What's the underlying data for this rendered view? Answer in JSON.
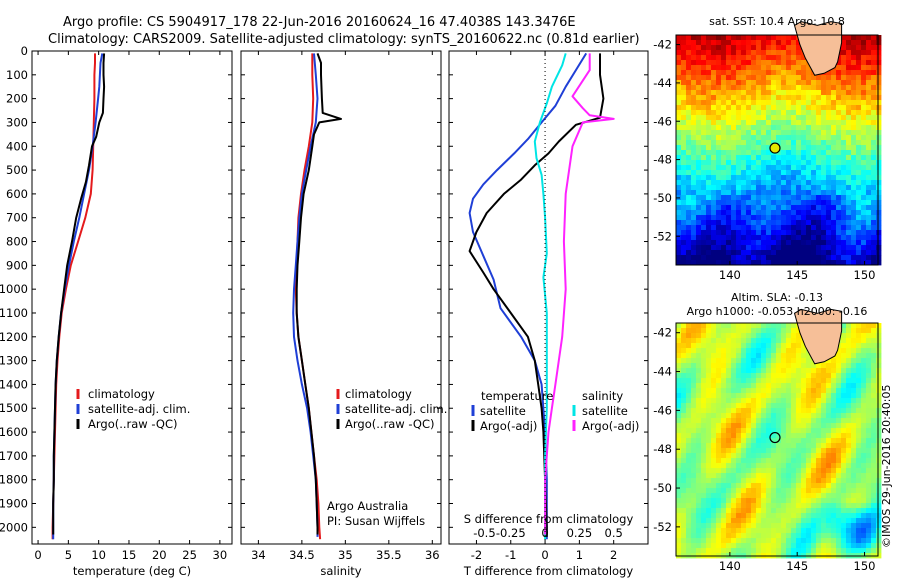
{
  "header": {
    "line1": "Argo profile: CS 5904917_178 22-Jun-2016 20160624_16 47.4038S 143.3476E",
    "line2": "Climatology: CARS2009. Satellite-adjusted climatology: synTS_20160622.nc (0.81d earlier)"
  },
  "depth_ticks": [
    0,
    100,
    200,
    300,
    400,
    500,
    600,
    700,
    800,
    900,
    1000,
    1100,
    1200,
    1300,
    1400,
    1500,
    1600,
    1700,
    1800,
    1900,
    2000
  ],
  "chart_data": [
    {
      "type": "line",
      "id": "temperature",
      "xlabel": "temperature (deg C)",
      "ylim": [
        0,
        2070
      ],
      "xlim": [
        -1,
        32
      ],
      "xticks": [
        0,
        5,
        10,
        15,
        20,
        25,
        30
      ],
      "legend": [
        "climatology",
        "satellite-adj. clim.",
        "Argo(..raw -QC)"
      ],
      "series": [
        {
          "name": "climatology",
          "color": "#e41a1c",
          "points": [
            [
              9.4,
              10
            ],
            [
              9.4,
              50
            ],
            [
              9.3,
              100
            ],
            [
              9.3,
              150
            ],
            [
              9.3,
              200
            ],
            [
              9.2,
              300
            ],
            [
              9.1,
              400
            ],
            [
              9.0,
              500
            ],
            [
              8.7,
              600
            ],
            [
              7.8,
              700
            ],
            [
              6.6,
              800
            ],
            [
              5.4,
              900
            ],
            [
              4.6,
              1000
            ],
            [
              3.9,
              1100
            ],
            [
              3.5,
              1200
            ],
            [
              3.2,
              1300
            ],
            [
              3.0,
              1400
            ],
            [
              2.9,
              1500
            ],
            [
              2.8,
              1600
            ],
            [
              2.7,
              1700
            ],
            [
              2.6,
              1800
            ],
            [
              2.5,
              1900
            ],
            [
              2.4,
              2000
            ],
            [
              2.4,
              2050
            ]
          ]
        },
        {
          "name": "satellite-adj. clim.",
          "color": "#1f3fd6",
          "points": [
            [
              10.6,
              10
            ],
            [
              10.3,
              50
            ],
            [
              10.2,
              100
            ],
            [
              10.1,
              150
            ],
            [
              9.9,
              200
            ],
            [
              9.5,
              300
            ],
            [
              9.0,
              400
            ],
            [
              8.4,
              500
            ],
            [
              7.6,
              600
            ],
            [
              6.8,
              700
            ],
            [
              5.9,
              800
            ],
            [
              5.1,
              900
            ],
            [
              4.4,
              1000
            ],
            [
              3.8,
              1100
            ],
            [
              3.4,
              1200
            ],
            [
              3.1,
              1300
            ],
            [
              2.9,
              1400
            ],
            [
              2.8,
              1500
            ],
            [
              2.7,
              1600
            ],
            [
              2.6,
              1700
            ],
            [
              2.6,
              1800
            ],
            [
              2.5,
              1900
            ],
            [
              2.5,
              2000
            ],
            [
              2.5,
              2050
            ]
          ]
        },
        {
          "name": "Argo(..raw -QC)",
          "color": "#000000",
          "points": [
            [
              10.9,
              10
            ],
            [
              10.8,
              50
            ],
            [
              10.8,
              100
            ],
            [
              10.9,
              150
            ],
            [
              10.8,
              200
            ],
            [
              10.7,
              260
            ],
            [
              10.1,
              300
            ],
            [
              9.6,
              360
            ],
            [
              8.9,
              400
            ],
            [
              8.4,
              480
            ],
            [
              7.9,
              550
            ],
            [
              7.1,
              620
            ],
            [
              6.3,
              700
            ],
            [
              5.6,
              800
            ],
            [
              4.8,
              900
            ],
            [
              4.3,
              1000
            ],
            [
              3.8,
              1100
            ],
            [
              3.4,
              1200
            ],
            [
              3.1,
              1300
            ],
            [
              2.9,
              1400
            ],
            [
              2.8,
              1500
            ],
            [
              2.7,
              1600
            ],
            [
              2.6,
              1700
            ],
            [
              2.6,
              1800
            ],
            [
              2.5,
              1900
            ],
            [
              2.5,
              2000
            ],
            [
              2.5,
              2030
            ]
          ]
        }
      ]
    },
    {
      "type": "line",
      "id": "salinity",
      "xlabel": "salinity",
      "ylim": [
        0,
        2070
      ],
      "xlim": [
        33.8,
        36.1
      ],
      "xticks": [
        34,
        34.5,
        35,
        35.5,
        36
      ],
      "legend": [
        "climatology",
        "satellite-adj. clim.",
        "Argo(..raw -QC)"
      ],
      "annotation": [
        "Argo Australia",
        "PI: Susan Wijffels"
      ],
      "series": [
        {
          "name": "climatology",
          "color": "#e41a1c",
          "points": [
            [
              34.62,
              10
            ],
            [
              34.62,
              100
            ],
            [
              34.63,
              200
            ],
            [
              34.62,
              300
            ],
            [
              34.58,
              400
            ],
            [
              34.53,
              500
            ],
            [
              34.49,
              600
            ],
            [
              34.46,
              700
            ],
            [
              34.45,
              800
            ],
            [
              34.44,
              900
            ],
            [
              34.43,
              1000
            ],
            [
              34.44,
              1100
            ],
            [
              34.46,
              1200
            ],
            [
              34.5,
              1300
            ],
            [
              34.54,
              1400
            ],
            [
              34.58,
              1500
            ],
            [
              34.61,
              1600
            ],
            [
              34.64,
              1700
            ],
            [
              34.67,
              1800
            ],
            [
              34.69,
              1900
            ],
            [
              34.7,
              2000
            ],
            [
              34.71,
              2050
            ]
          ]
        },
        {
          "name": "satellite-adj. clim.",
          "color": "#1f3fd6",
          "points": [
            [
              34.64,
              10
            ],
            [
              34.66,
              100
            ],
            [
              34.68,
              200
            ],
            [
              34.66,
              300
            ],
            [
              34.6,
              400
            ],
            [
              34.55,
              500
            ],
            [
              34.5,
              600
            ],
            [
              34.47,
              700
            ],
            [
              34.45,
              800
            ],
            [
              34.43,
              900
            ],
            [
              34.41,
              1000
            ],
            [
              34.4,
              1100
            ],
            [
              34.41,
              1200
            ],
            [
              34.45,
              1300
            ],
            [
              34.5,
              1400
            ],
            [
              34.56,
              1500
            ],
            [
              34.6,
              1600
            ],
            [
              34.63,
              1700
            ],
            [
              34.66,
              1800
            ],
            [
              34.67,
              1900
            ],
            [
              34.68,
              2000
            ],
            [
              34.68,
              2040
            ]
          ]
        },
        {
          "name": "Argo(..raw -QC)",
          "color": "#000000",
          "points": [
            [
              34.68,
              10
            ],
            [
              34.72,
              50
            ],
            [
              34.72,
              100
            ],
            [
              34.73,
              200
            ],
            [
              34.74,
              260
            ],
            [
              34.95,
              285
            ],
            [
              34.7,
              300
            ],
            [
              34.64,
              350
            ],
            [
              34.62,
              400
            ],
            [
              34.58,
              500
            ],
            [
              34.52,
              600
            ],
            [
              34.49,
              700
            ],
            [
              34.47,
              800
            ],
            [
              34.45,
              900
            ],
            [
              34.44,
              1000
            ],
            [
              34.44,
              1100
            ],
            [
              34.46,
              1200
            ],
            [
              34.5,
              1300
            ],
            [
              34.54,
              1400
            ],
            [
              34.58,
              1500
            ],
            [
              34.61,
              1600
            ],
            [
              34.64,
              1700
            ],
            [
              34.66,
              1800
            ],
            [
              34.67,
              1900
            ],
            [
              34.68,
              2000
            ],
            [
              34.68,
              2030
            ]
          ]
        }
      ]
    },
    {
      "type": "line",
      "id": "difference",
      "xlabel": "T difference from climatology",
      "top_label": "S difference from climatology",
      "ylim": [
        0,
        2070
      ],
      "xlim": [
        -2.8,
        3.0
      ],
      "xticks": [
        -2,
        -1,
        0,
        1,
        2
      ],
      "top_ticks": [
        "-0.5",
        "-0.25",
        "0",
        "0.25",
        "0.5"
      ],
      "top_tick_x": [
        -2,
        -1,
        0,
        1,
        2
      ],
      "legend_temperature": [
        "temperature",
        "satellite",
        "Argo(-adj)"
      ],
      "legend_salinity": [
        "salinity",
        "satellite",
        "Argo(-adj)"
      ],
      "series": [
        {
          "name": "temperature satellite",
          "color": "#1f3fd6",
          "points": [
            [
              1.2,
              10
            ],
            [
              0.9,
              80
            ],
            [
              0.6,
              150
            ],
            [
              0.3,
              230
            ],
            [
              -0.1,
              300
            ],
            [
              -0.5,
              370
            ],
            [
              -0.9,
              430
            ],
            [
              -1.4,
              500
            ],
            [
              -1.8,
              560
            ],
            [
              -2.1,
              620
            ],
            [
              -2.2,
              680
            ],
            [
              -2.1,
              760
            ],
            [
              -1.8,
              860
            ],
            [
              -1.5,
              960
            ],
            [
              -1.3,
              1080
            ],
            [
              -0.7,
              1200
            ],
            [
              -0.3,
              1300
            ],
            [
              -0.1,
              1400
            ],
            [
              0,
              1600
            ],
            [
              0.05,
              1800
            ],
            [
              0.05,
              2000
            ],
            [
              0.05,
              2050
            ]
          ]
        },
        {
          "name": "temperature Argo(-adj)",
          "color": "#000000",
          "points": [
            [
              1.6,
              10
            ],
            [
              1.6,
              50
            ],
            [
              1.6,
              100
            ],
            [
              1.7,
              200
            ],
            [
              1.6,
              280
            ],
            [
              0.9,
              310
            ],
            [
              0.4,
              380
            ],
            [
              0.1,
              430
            ],
            [
              -0.3,
              480
            ],
            [
              -0.7,
              540
            ],
            [
              -1.2,
              600
            ],
            [
              -1.7,
              680
            ],
            [
              -2.0,
              760
            ],
            [
              -2.2,
              840
            ],
            [
              -1.8,
              930
            ],
            [
              -1.5,
              1000
            ],
            [
              -1.0,
              1100
            ],
            [
              -0.5,
              1200
            ],
            [
              -0.3,
              1300
            ],
            [
              -0.2,
              1400
            ],
            [
              -0.1,
              1500
            ],
            [
              -0.05,
              1600
            ],
            [
              0,
              1800
            ],
            [
              0.05,
              2000
            ],
            [
              0.05,
              2040
            ]
          ]
        },
        {
          "name": "salinity satellite",
          "color": "#00e5e5",
          "points": [
            [
              0.6,
              10
            ],
            [
              0.5,
              60
            ],
            [
              0.2,
              150
            ],
            [
              0.05,
              220
            ],
            [
              -0.15,
              300
            ],
            [
              -0.3,
              380
            ],
            [
              -0.25,
              450
            ],
            [
              -0.1,
              520
            ],
            [
              -0.05,
              600
            ],
            [
              0,
              700
            ],
            [
              0.05,
              850
            ],
            [
              -0.05,
              950
            ],
            [
              0.05,
              1100
            ],
            [
              0.05,
              1300
            ],
            [
              0.05,
              1500
            ],
            [
              0,
              1700
            ],
            [
              0,
              1900
            ],
            [
              0,
              2050
            ]
          ]
        },
        {
          "name": "salinity Argo(-adj)",
          "color": "#ff22ff",
          "points": [
            [
              1.3,
              10
            ],
            [
              1.3,
              80
            ],
            [
              0.8,
              190
            ],
            [
              1.1,
              240
            ],
            [
              1.3,
              270
            ],
            [
              2.0,
              285
            ],
            [
              1.1,
              300
            ],
            [
              0.8,
              400
            ],
            [
              0.7,
              500
            ],
            [
              0.6,
              600
            ],
            [
              0.55,
              800
            ],
            [
              0.6,
              1000
            ],
            [
              0.5,
              1200
            ],
            [
              0.4,
              1300
            ],
            [
              0.3,
              1400
            ],
            [
              0.2,
              1500
            ],
            [
              0.1,
              1600
            ],
            [
              0,
              1800
            ],
            [
              0,
              2000
            ],
            [
              0,
              2030
            ]
          ]
        }
      ]
    },
    {
      "type": "heatmap",
      "id": "sst_map",
      "title": "sat. SST: 10.4 Argo: 10.8",
      "xticks": [
        140,
        145,
        150
      ],
      "yticks": [
        -42,
        -44,
        -46,
        -48,
        -50,
        -52
      ],
      "xlim": [
        136,
        151
      ],
      "ylim": [
        -53.5,
        -41.5
      ],
      "marker": [
        143.35,
        -47.4
      ]
    },
    {
      "type": "heatmap",
      "id": "sla_map",
      "title_line1": "Altim. SLA: -0.13",
      "title_line2": "Argo h1000: -0.053 h2000: -0.16",
      "xticks": [
        140,
        145,
        150
      ],
      "yticks": [
        -42,
        -44,
        -46,
        -48,
        -50,
        -52
      ],
      "xlim": [
        136,
        151
      ],
      "ylim": [
        -53.5,
        -41.5
      ],
      "marker": [
        143.35,
        -47.4
      ]
    }
  ],
  "credit": "©IMOS 29-Jun-2016 20:40:05",
  "colors": {
    "climatology": "#e41a1c",
    "satellite": "#1f3fd6",
    "argo": "#000000",
    "salinity_satellite": "#00e5e5",
    "salinity_argo": "#ff22ff",
    "land": "#f6bf98"
  }
}
